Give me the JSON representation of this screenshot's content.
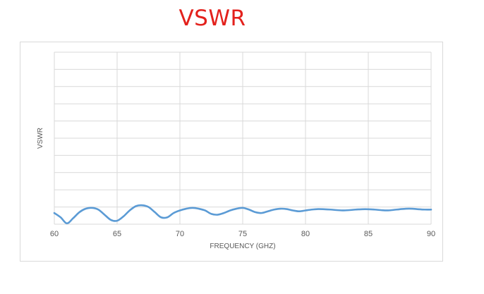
{
  "chart_data": {
    "type": "line",
    "title": "VSWR",
    "xlabel": "FREQUENCY (GHZ)",
    "ylabel": "VSWR",
    "xlim": [
      60,
      90
    ],
    "x_ticks": [
      "60",
      "65",
      "70",
      "75",
      "80",
      "85",
      "90"
    ],
    "grid": true,
    "legend": "none",
    "colors": {
      "title": "#e3211c",
      "series": "#5b9bd5",
      "grid": "#d9d9d9"
    },
    "series": [
      {
        "x": [
          60.0,
          60.5,
          61.0,
          61.5,
          62.0,
          62.5,
          63.0,
          63.5,
          64.0,
          64.5,
          65.0,
          65.5,
          66.0,
          66.5,
          67.0,
          67.5,
          68.0,
          68.5,
          69.0,
          69.5,
          70.0,
          70.5,
          71.0,
          71.5,
          72.0,
          72.5,
          73.0,
          73.5,
          74.0,
          74.5,
          75.0,
          75.5,
          76.0,
          76.5,
          77.0,
          77.5,
          78.0,
          78.5,
          79.0,
          79.5,
          80.0,
          80.5,
          81.0,
          81.5,
          82.0,
          82.5,
          83.0,
          83.5,
          84.0,
          84.5,
          85.0,
          85.5,
          86.0,
          86.5,
          87.0,
          87.5,
          88.0,
          88.5,
          89.0,
          89.5,
          90.0
        ],
        "values": [
          0.65,
          0.4,
          0.05,
          0.35,
          0.7,
          0.9,
          0.95,
          0.85,
          0.55,
          0.25,
          0.2,
          0.45,
          0.8,
          1.05,
          1.1,
          1.0,
          0.7,
          0.4,
          0.4,
          0.65,
          0.8,
          0.9,
          0.95,
          0.9,
          0.8,
          0.6,
          0.55,
          0.65,
          0.8,
          0.9,
          0.95,
          0.85,
          0.7,
          0.65,
          0.75,
          0.85,
          0.9,
          0.88,
          0.8,
          0.75,
          0.8,
          0.85,
          0.88,
          0.87,
          0.85,
          0.82,
          0.8,
          0.82,
          0.85,
          0.87,
          0.87,
          0.85,
          0.82,
          0.8,
          0.83,
          0.87,
          0.9,
          0.9,
          0.87,
          0.85,
          0.85
        ]
      }
    ]
  }
}
